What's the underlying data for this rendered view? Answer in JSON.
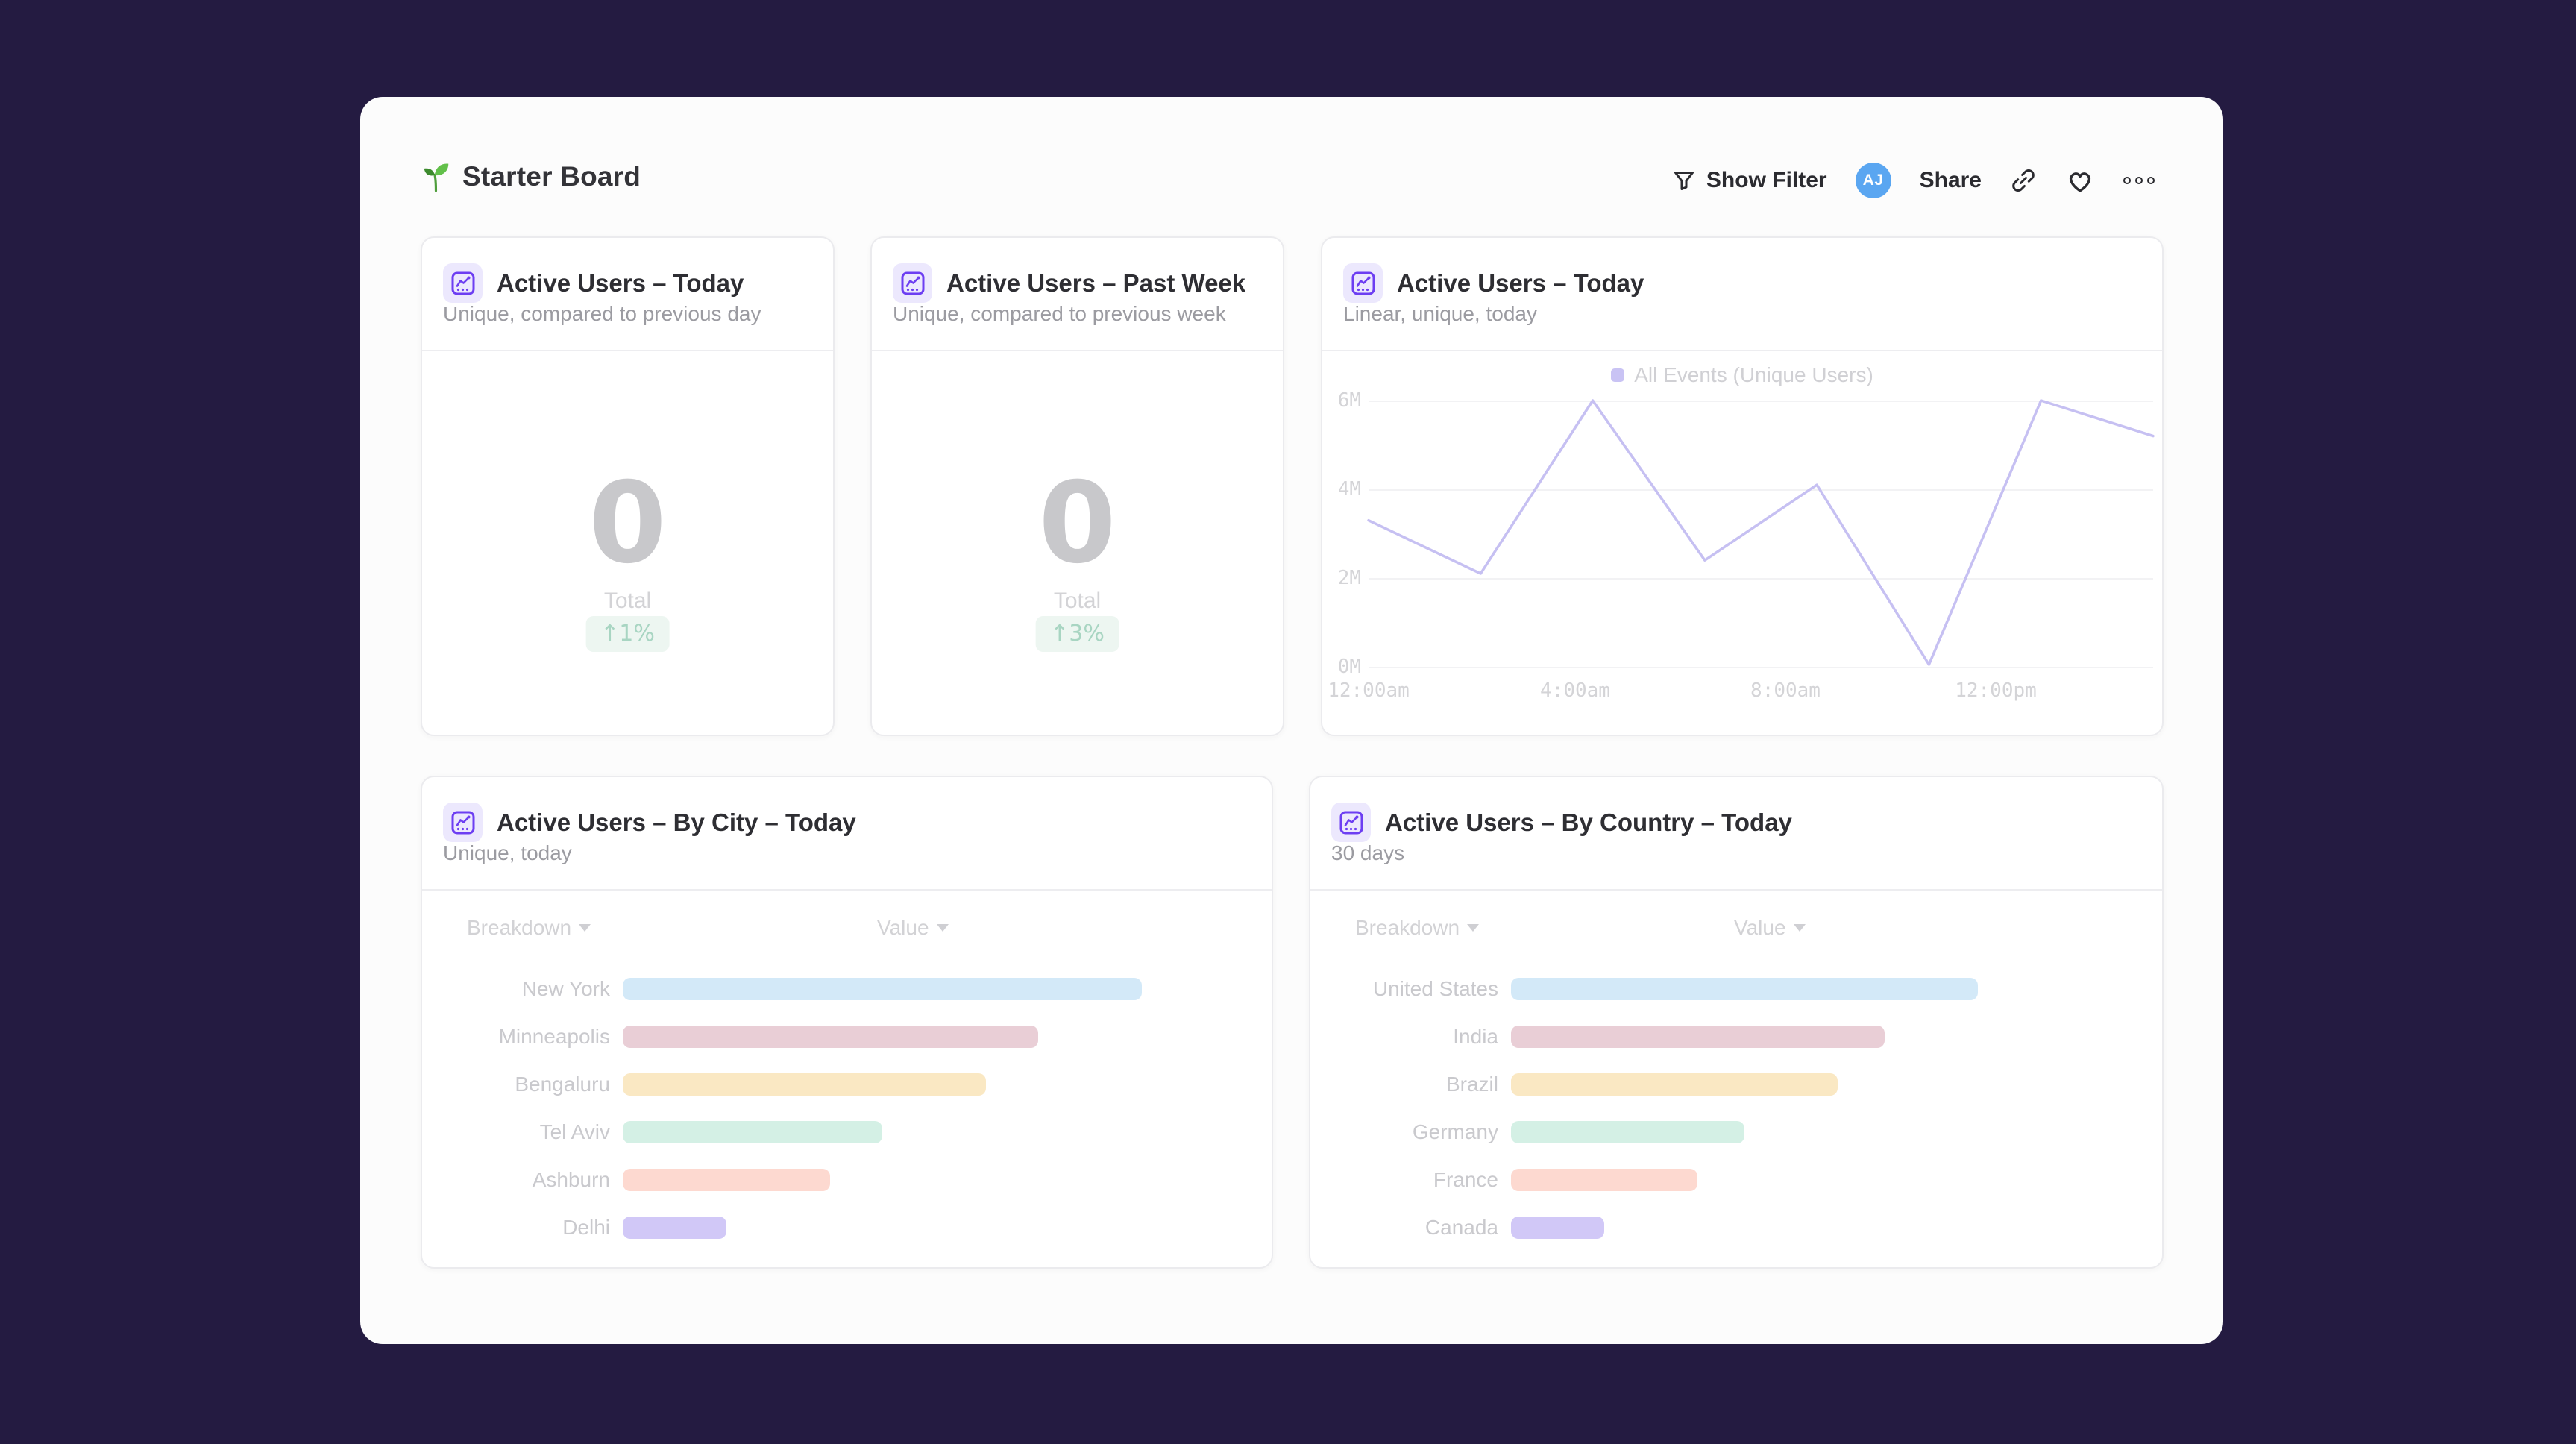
{
  "page": {
    "background_color": "#241b41",
    "panel_color": "#fcfcfc"
  },
  "header": {
    "title": "Starter Board",
    "show_filter_label": "Show Filter",
    "avatar_initials": "AJ",
    "share_label": "Share"
  },
  "colors": {
    "accent_purple": "#6d3ef2",
    "avatar_blue": "#5aa6f1",
    "positive_green": "#a8d5c2",
    "line_lavender": "#c6c0f2"
  },
  "cards": {
    "kpi_today": {
      "title": "Active Users – Today",
      "subtitle": "Unique, compared to previous day",
      "value": "0",
      "value_label": "Total",
      "delta": "↑1%"
    },
    "kpi_week": {
      "title": "Active Users – Past Week",
      "subtitle": "Unique, compared to previous week",
      "value": "0",
      "value_label": "Total",
      "delta": "↑3%"
    },
    "line_today": {
      "title": "Active Users – Today",
      "subtitle": "Linear, unique, today",
      "legend": "All Events (Unique Users)"
    },
    "by_city": {
      "title": "Active Users – By City – Today",
      "subtitle": "Unique, today",
      "breakdown_label": "Breakdown",
      "value_label": "Value"
    },
    "by_country": {
      "title": "Active Users – By Country – Today",
      "subtitle": "30 days",
      "breakdown_label": "Breakdown",
      "value_label": "Value"
    }
  },
  "chart_data": [
    {
      "type": "line",
      "title": "Active Users – Today",
      "legend_entries": [
        "All Events (Unique Users)"
      ],
      "legend_position": "top",
      "series": [
        {
          "name": "All Events (Unique Users)",
          "values": [
            3.3,
            2.1,
            6.0,
            2.4,
            4.1,
            0.05,
            6.0,
            5.2
          ],
          "color": "#c6c0f2"
        }
      ],
      "x": [
        "12:00am",
        "2:00am",
        "4:00am",
        "6:00am",
        "8:00am",
        "10:00am",
        "12:00pm",
        "2:00pm"
      ],
      "x_tick_labels": [
        "12:00am",
        "4:00am",
        "8:00am",
        "12:00pm"
      ],
      "y_ticks_top_to_bottom": [
        "6M",
        "4M",
        "2M",
        "0M"
      ],
      "ylim": [
        0,
        6
      ],
      "y_unit": "M",
      "grid": true
    },
    {
      "type": "bar",
      "orientation": "horizontal",
      "title": "Active Users – By City – Today",
      "categories": [
        "New York",
        "Minneapolis",
        "Bengaluru",
        "Tel Aviv",
        "Ashburn",
        "Delhi"
      ],
      "relative_values": [
        100,
        80,
        70,
        50,
        40,
        20
      ],
      "colors": [
        "#d3e9f8",
        "#e9ced6",
        "#fae8c3",
        "#d4f0e5",
        "#fdd9d0",
        "#d1c8f7"
      ]
    },
    {
      "type": "bar",
      "orientation": "horizontal",
      "title": "Active Users – By Country – Today",
      "categories": [
        "United States",
        "India",
        "Brazil",
        "Germany",
        "France",
        "Canada"
      ],
      "relative_values": [
        100,
        80,
        70,
        50,
        40,
        20
      ],
      "colors": [
        "#d3e9f8",
        "#e9ced6",
        "#fae8c3",
        "#d4f0e5",
        "#fdd9d0",
        "#d1c8f7"
      ]
    }
  ]
}
